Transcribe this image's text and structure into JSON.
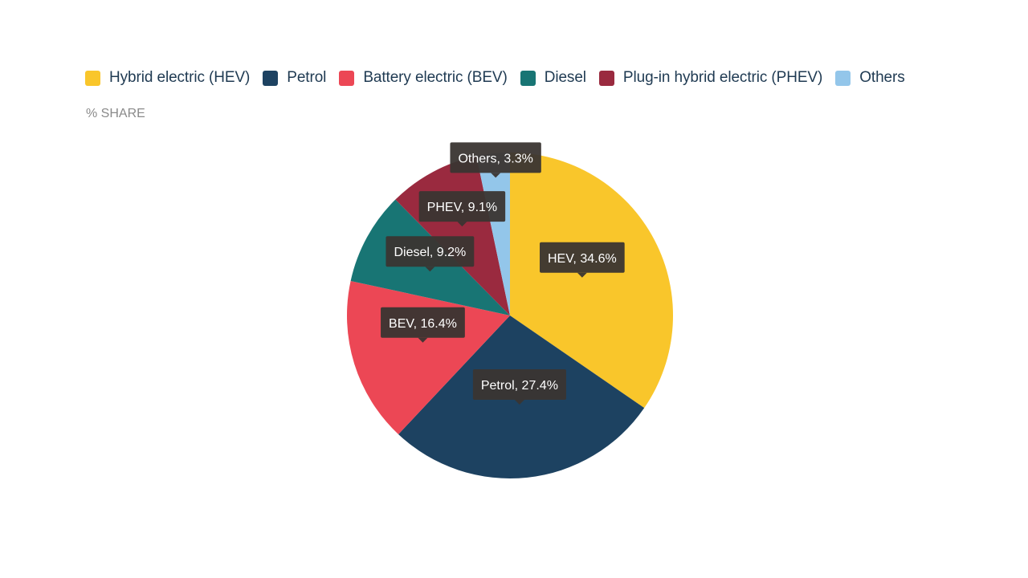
{
  "chart_data": {
    "type": "pie",
    "ylabel": "% SHARE",
    "legend_position": "top-left",
    "series": [
      {
        "name": "Hybrid electric (HEV)",
        "short": "HEV",
        "value": 34.6,
        "label": "HEV, 34.6%",
        "color": "#f9c62b"
      },
      {
        "name": "Petrol",
        "short": "Petrol",
        "value": 27.4,
        "label": "Petrol, 27.4%",
        "color": "#1d4261"
      },
      {
        "name": "Battery electric (BEV)",
        "short": "BEV",
        "value": 16.4,
        "label": "BEV, 16.4%",
        "color": "#ec4755"
      },
      {
        "name": "Diesel",
        "short": "Diesel",
        "value": 9.2,
        "label": "Diesel, 9.2%",
        "color": "#187574"
      },
      {
        "name": "Plug-in hybrid electric (PHEV)",
        "short": "PHEV",
        "value": 9.1,
        "label": "PHEV, 9.1%",
        "color": "#9a2a3f"
      },
      {
        "name": "Others",
        "short": "Others",
        "value": 3.3,
        "label": "Others, 3.3%",
        "color": "#93c6ea"
      }
    ]
  }
}
